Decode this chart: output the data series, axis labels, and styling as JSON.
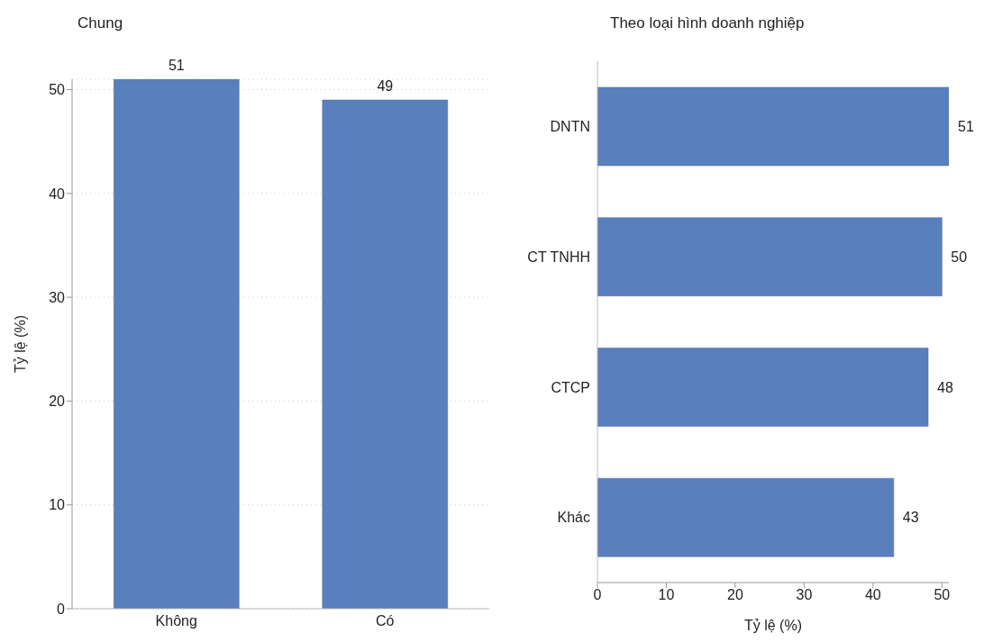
{
  "chart_data": [
    {
      "type": "bar",
      "title": "Chung",
      "categories": [
        "Không",
        "Có"
      ],
      "values": [
        51,
        49
      ],
      "color": "#5a7fbd",
      "ylabel": "Tỷ lệ (%)",
      "ylim": [
        0,
        51
      ],
      "yticks": [
        0,
        10,
        20,
        30,
        40,
        50
      ],
      "grid": "y",
      "data_labels": true
    },
    {
      "type": "bar",
      "title": "Theo loại hình doanh nghiệp",
      "orientation": "horizontal",
      "categories": [
        "DNTN",
        "CT TNHH",
        "CTCP",
        "Khác"
      ],
      "values": [
        51,
        50,
        48,
        43
      ],
      "color": "#5a7fbd",
      "xlabel": "Tỷ lệ (%)",
      "xlim": [
        0,
        51
      ],
      "xticks": [
        0,
        10,
        20,
        30,
        40,
        50
      ],
      "data_labels": true
    }
  ]
}
